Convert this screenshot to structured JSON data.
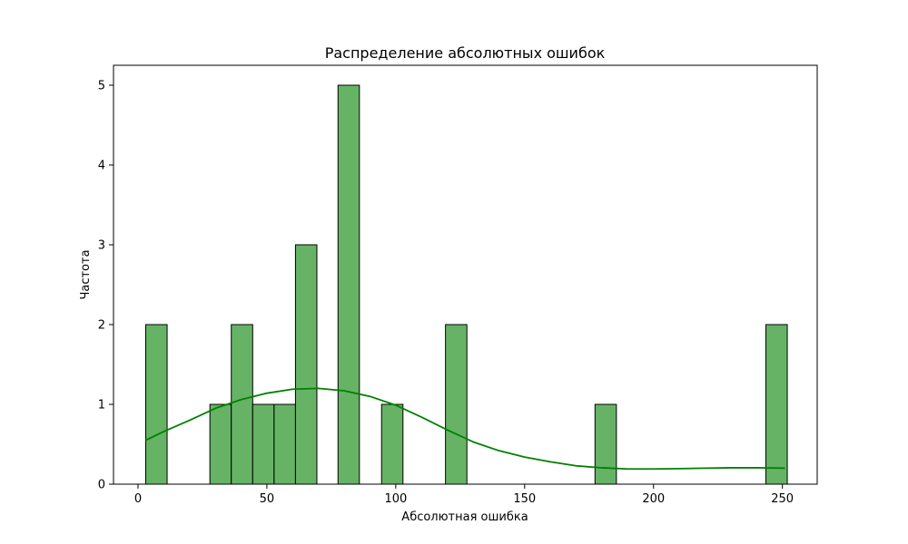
{
  "chart_data": {
    "type": "bar",
    "title": "Распределение абсолютных ошибок",
    "xlabel": "Абсолютная ошибка",
    "ylabel": "Частота",
    "xlim": [
      -9.5,
      263.5
    ],
    "ylim": [
      0,
      5.25
    ],
    "x_ticks": [
      0,
      50,
      100,
      150,
      200,
      250
    ],
    "y_ticks": [
      0,
      1,
      2,
      3,
      4,
      5
    ],
    "bins": [
      {
        "start": 3.0,
        "end": 11.3,
        "count": 2
      },
      {
        "start": 27.9,
        "end": 36.2,
        "count": 1
      },
      {
        "start": 36.2,
        "end": 44.5,
        "count": 2
      },
      {
        "start": 44.5,
        "end": 52.8,
        "count": 1
      },
      {
        "start": 52.8,
        "end": 61.1,
        "count": 1
      },
      {
        "start": 61.1,
        "end": 69.4,
        "count": 3
      },
      {
        "start": 77.6,
        "end": 85.9,
        "count": 5
      },
      {
        "start": 94.5,
        "end": 102.8,
        "count": 1
      },
      {
        "start": 119.3,
        "end": 127.6,
        "count": 2
      },
      {
        "start": 177.3,
        "end": 185.6,
        "count": 1
      },
      {
        "start": 243.6,
        "end": 251.9,
        "count": 2
      }
    ],
    "kde": {
      "x": [
        3,
        10,
        20,
        30,
        40,
        50,
        60,
        70,
        80,
        90,
        100,
        110,
        120,
        130,
        140,
        150,
        160,
        170,
        180,
        190,
        200,
        210,
        220,
        230,
        240,
        251
      ],
      "y": [
        0.55,
        0.66,
        0.8,
        0.95,
        1.06,
        1.14,
        1.19,
        1.2,
        1.17,
        1.1,
        0.99,
        0.84,
        0.68,
        0.53,
        0.42,
        0.34,
        0.28,
        0.23,
        0.205,
        0.19,
        0.19,
        0.195,
        0.2,
        0.205,
        0.205,
        0.2
      ]
    },
    "colors": {
      "bar_fill": "#66b366",
      "bar_edge": "#000000",
      "kde_line": "#008000"
    },
    "grid": false,
    "legend": "none"
  }
}
